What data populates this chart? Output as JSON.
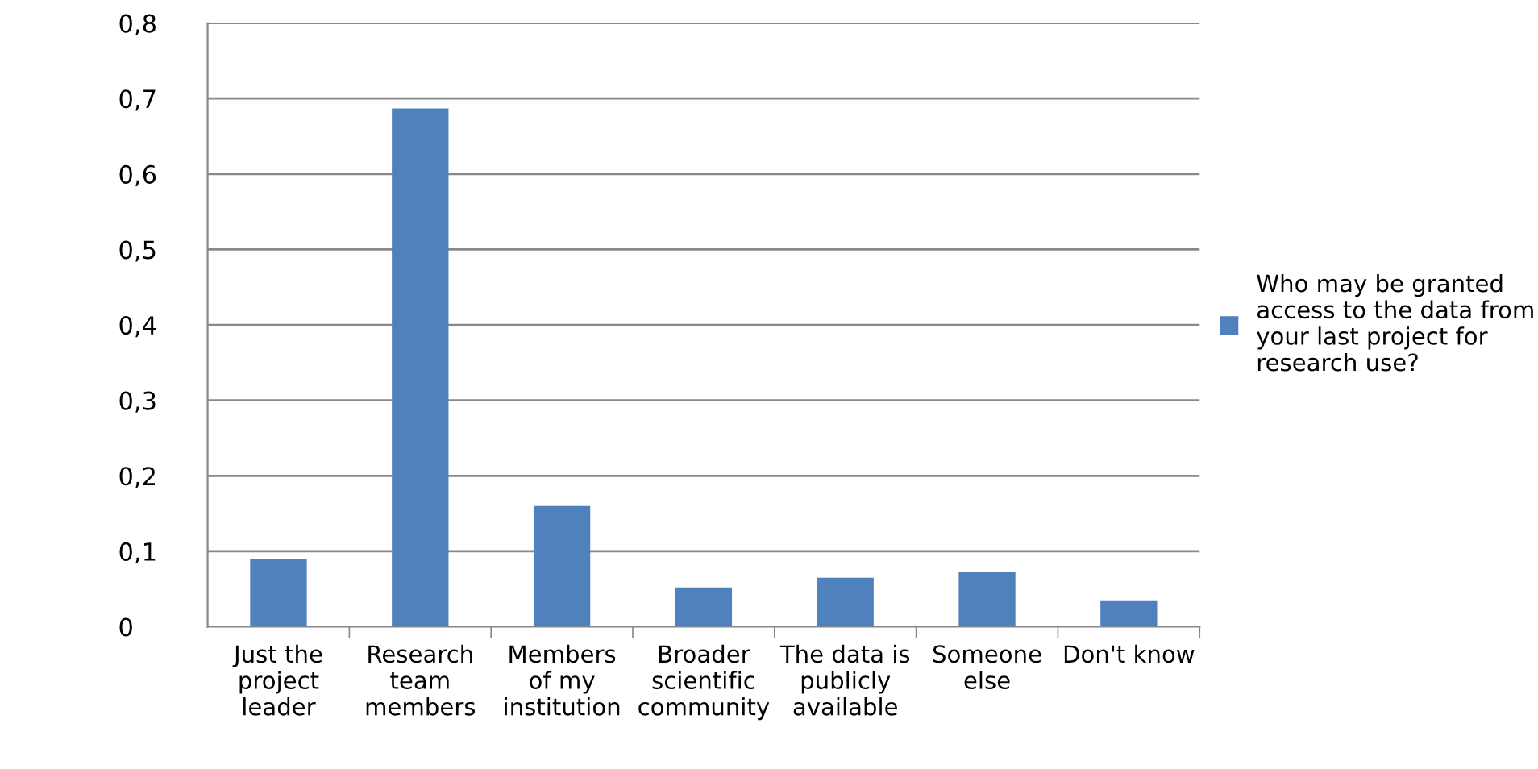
{
  "chart_data": {
    "type": "bar",
    "categories": [
      "Just the\nproject\nleader",
      "Research\nteam\nmembers",
      "Members\nof my\ninstitution",
      "Broader\nscientific\ncommunity",
      "The data is\npublicly\navailable",
      "Someone\nelse",
      "Don't know"
    ],
    "series": [
      {
        "name": "Who may be granted\naccess to the data from\nyour last project for\nresearch use?",
        "color": "#4f81bd",
        "values": [
          0.09,
          0.687,
          0.16,
          0.052,
          0.065,
          0.072,
          0.035
        ]
      }
    ],
    "ylim": [
      0,
      0.8
    ],
    "yticks": [
      {
        "value": 0,
        "label": "0"
      },
      {
        "value": 0.1,
        "label": "0,1"
      },
      {
        "value": 0.2,
        "label": "0,2"
      },
      {
        "value": 0.3,
        "label": "0,3"
      },
      {
        "value": 0.4,
        "label": "0,4"
      },
      {
        "value": 0.5,
        "label": "0,5"
      },
      {
        "value": 0.6,
        "label": "0,6"
      },
      {
        "value": 0.7,
        "label": "0,7"
      },
      {
        "value": 0.8,
        "label": "0,8"
      }
    ],
    "grid": "y",
    "legend": "right"
  }
}
